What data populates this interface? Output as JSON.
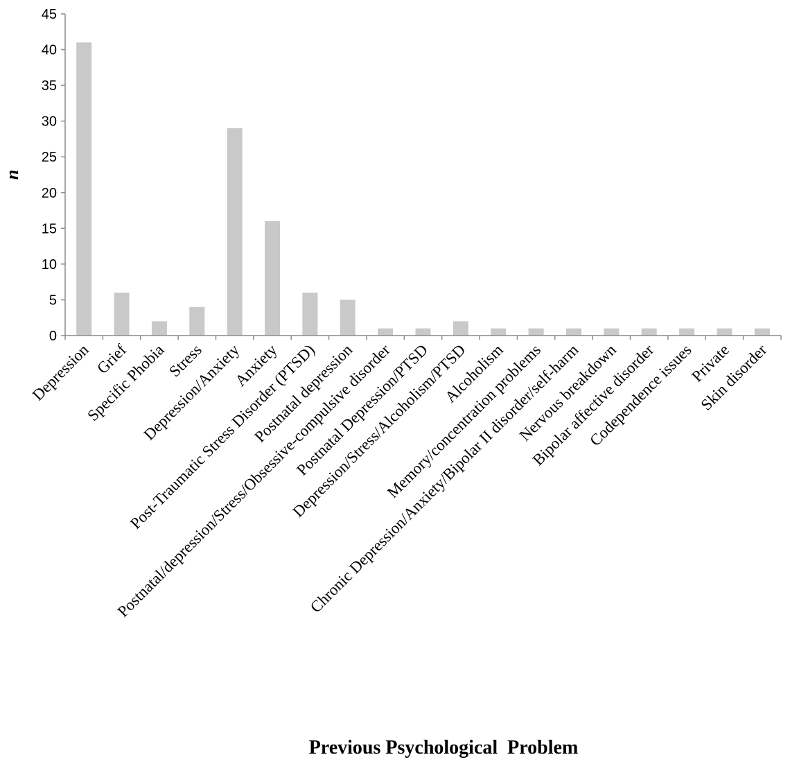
{
  "chart_data": {
    "type": "bar",
    "title": "",
    "xlabel": "Previous Psychological  Problem",
    "ylabel": "n",
    "ylim": [
      0,
      45
    ],
    "yticks": [
      0,
      5,
      10,
      15,
      20,
      25,
      30,
      35,
      40,
      45
    ],
    "grid": false,
    "bar_color": "#c9c9c9",
    "categories": [
      "Depression",
      "Grief",
      "Specific Phobia",
      "Stress",
      "Depression/Anxiety",
      "Anxiety",
      "Post-Traumatic Stress Disorder (PTSD)",
      "Postnatal depression",
      "Postnatal/depression/Stress/Obsessive-compulsive disorder",
      "Postnatal Depression/PTSD",
      "Depression/Stress/Alcoholism/PTSD",
      "Alcoholism",
      "Memory/concentration problems",
      "Chronic Depression/Anxiety/Bipolar II disorder/self-harm",
      "Nervous breakdown",
      "Bipolar affective disorder",
      "Codependence issues",
      "Private",
      "Skin disorder"
    ],
    "values": [
      41,
      6,
      2,
      4,
      29,
      16,
      6,
      5,
      1,
      1,
      2,
      1,
      1,
      1,
      1,
      1,
      1,
      1,
      1
    ]
  }
}
